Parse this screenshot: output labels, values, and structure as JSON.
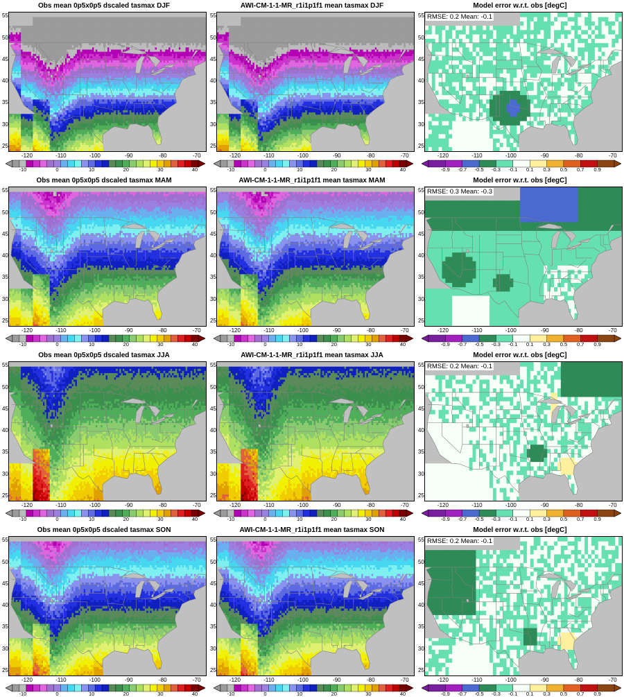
{
  "panels": [
    {
      "title": "Obs mean 0p5x0p5 dscaled tasmax DJF",
      "kind": "abs",
      "season": "DJF",
      "stats": ""
    },
    {
      "title": "AWI-CM-1-1-MR_r1i1p1f1 mean tasmax DJF",
      "kind": "abs",
      "season": "DJF",
      "stats": ""
    },
    {
      "title": "Model error w.r.t. obs [degC]",
      "kind": "err",
      "season": "DJF",
      "stats": "RMSE: 0.2  Mean: -0.1"
    },
    {
      "title": "Obs mean 0p5x0p5 dscaled tasmax MAM",
      "kind": "abs",
      "season": "MAM",
      "stats": ""
    },
    {
      "title": "AWI-CM-1-1-MR_r1i1p1f1 mean tasmax MAM",
      "kind": "abs",
      "season": "MAM",
      "stats": ""
    },
    {
      "title": "Model error w.r.t. obs [degC]",
      "kind": "err",
      "season": "MAM",
      "stats": "RMSE: 0.3  Mean: -0.3"
    },
    {
      "title": "Obs mean 0p5x0p5 dscaled tasmax JJA",
      "kind": "abs",
      "season": "JJA",
      "stats": ""
    },
    {
      "title": "AWI-CM-1-1-MR_r1i1p1f1 mean tasmax JJA",
      "kind": "abs",
      "season": "JJA",
      "stats": ""
    },
    {
      "title": "Model error w.r.t. obs [degC]",
      "kind": "err",
      "season": "JJA",
      "stats": "RMSE: 0.2  Mean: -0.1"
    },
    {
      "title": "Obs mean 0p5x0p5 dscaled tasmax SON",
      "kind": "abs",
      "season": "SON",
      "stats": ""
    },
    {
      "title": "AWI-CM-1-1-MR_r1i1p1f1 mean tasmax SON",
      "kind": "abs",
      "season": "SON",
      "stats": ""
    },
    {
      "title": "Model error w.r.t. obs [degC]",
      "kind": "err",
      "season": "SON",
      "stats": "RMSE: 0.2  Mean: -0.1"
    }
  ],
  "axes": {
    "lon_ticks": [
      "-120",
      "-110",
      "-100",
      "-90",
      "-80",
      "-70"
    ],
    "lat_ticks": [
      "55",
      "50",
      "45",
      "40",
      "35",
      "30",
      "25"
    ]
  },
  "colorbars": {
    "abs": {
      "labels": [
        "-10",
        "0",
        "10",
        "20",
        "30",
        "40"
      ],
      "colors": [
        "#9b9b9b",
        "#bcbcbc",
        "#b400b4",
        "#cc33cc",
        "#e066e0",
        "#a070d0",
        "#9b80e0",
        "#6ab0ee",
        "#46d8f0",
        "#7ef0f0",
        "#8a92ee",
        "#5d6ae2",
        "#2230e0",
        "#1020c0",
        "#5a8a5a",
        "#3d8f4e",
        "#4fae5a",
        "#8acb70",
        "#b0e060",
        "#e0f070",
        "#f0f000",
        "#f0cc00",
        "#e0a000",
        "#e06040",
        "#e02020",
        "#c00000",
        "#7a0000"
      ]
    },
    "err": {
      "labels": [
        "-0.9",
        "-0.7",
        "-0.5",
        "-0.3",
        "-0.1",
        "0.1",
        "0.3",
        "0.5",
        "0.7",
        "0.9"
      ],
      "colors": [
        "#7a1ea0",
        "#a020c0",
        "#4a6ad0",
        "#2e8b57",
        "#66e0b0",
        "#f6fff8",
        "#fff0a0",
        "#f0b030",
        "#e06020",
        "#c01010",
        "#8b4513"
      ]
    }
  },
  "map_colors": {
    "land_bg": "#c0c0c0",
    "ocean": "#c0c0c0",
    "border": "#808080"
  }
}
